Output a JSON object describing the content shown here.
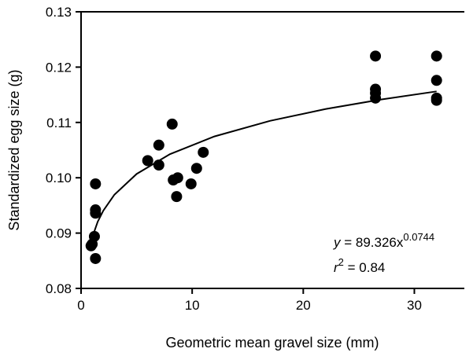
{
  "chart_data": {
    "type": "scatter",
    "x_label": "Geometric mean gravel size (mm)",
    "y_label": "Standardized egg size (g)",
    "xlim": [
      0,
      34.5
    ],
    "ylim": [
      0.08,
      0.13
    ],
    "xticks": [
      0,
      10,
      20,
      30
    ],
    "yticks": [
      0.08,
      0.09,
      {
        "value": 0.1,
        "label": "0.10"
      },
      0.11,
      0.12,
      0.13
    ],
    "color": "#000000",
    "x": [
      0.9,
      1.0,
      1.2,
      1.3,
      1.3,
      1.3,
      1.3,
      6.0,
      7.0,
      7.0,
      8.2,
      8.3,
      8.6,
      8.7,
      9.9,
      10.4,
      11.0,
      26.5,
      26.5,
      26.5,
      26.5,
      32,
      32,
      32,
      32
    ],
    "values": [
      0.0877,
      0.088,
      0.0894,
      0.0854,
      0.0989,
      0.0942,
      0.0936,
      0.1031,
      0.1059,
      0.1023,
      0.1097,
      0.0996,
      0.0966,
      0.1,
      0.0989,
      0.1017,
      0.1046,
      0.122,
      0.116,
      0.1153,
      0.1144,
      0.122,
      0.1176,
      0.1144,
      0.114
    ],
    "fit": {
      "x": [
        0.9,
        1.5,
        2,
        3,
        5,
        8,
        12,
        17,
        22,
        27,
        32
      ],
      "values": [
        0.08863,
        0.09206,
        0.09405,
        0.09694,
        0.10069,
        0.10427,
        0.10747,
        0.11028,
        0.11242,
        0.11415,
        0.11561
      ]
    },
    "annotations": {
      "equation": {
        "var": "y",
        "body": " = 89.326x",
        "exponent": "0.0744"
      },
      "r2": {
        "var": "r",
        "exponent": "2",
        "body": " = 0.84"
      }
    }
  }
}
